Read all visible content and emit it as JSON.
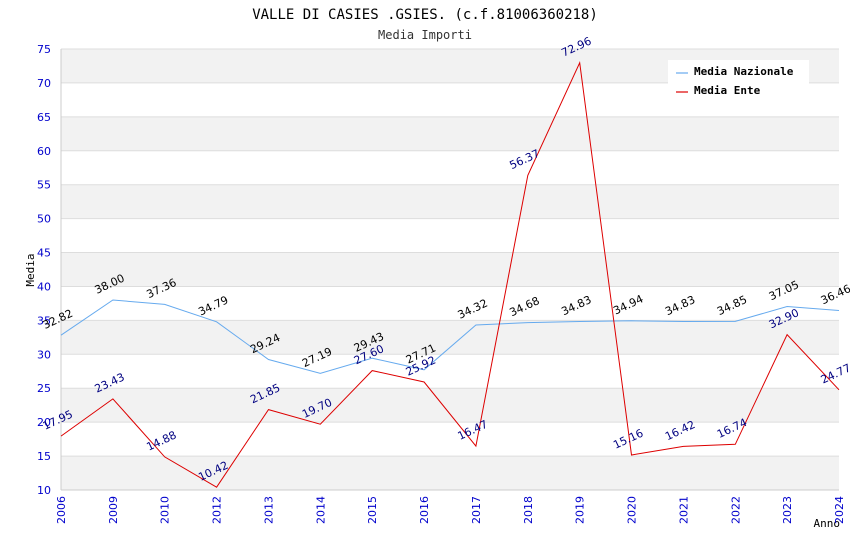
{
  "chart_data": {
    "type": "line",
    "title": "VALLE DI CASIES .GSIES. (c.f.81006360218)",
    "subtitle": "Media Importi",
    "xlabel": "Anno",
    "ylabel": "Media",
    "ylim": [
      10,
      75
    ],
    "yticks": [
      10,
      15,
      20,
      25,
      30,
      35,
      40,
      45,
      50,
      55,
      60,
      65,
      70,
      75
    ],
    "categories": [
      "2006",
      "2009",
      "2010",
      "2012",
      "2013",
      "2014",
      "2015",
      "2016",
      "2017",
      "2018",
      "2019",
      "2020",
      "2021",
      "2022",
      "2023",
      "2024"
    ],
    "series": [
      {
        "name": "Media Nazionale",
        "color": "#66aaee",
        "values": [
          32.82,
          38.0,
          37.36,
          34.79,
          29.24,
          27.19,
          29.43,
          27.71,
          34.32,
          34.68,
          34.83,
          34.94,
          34.83,
          34.85,
          37.05,
          36.46
        ],
        "labels": [
          "32.82",
          "38.00",
          "37.36",
          "34.79",
          "29.24",
          "27.19",
          "29.43",
          "27.71",
          "34.32",
          "34.68",
          "34.83",
          "34.94",
          "34.83",
          "34.85",
          "37.05",
          "36.46"
        ]
      },
      {
        "name": "Media Ente",
        "color": "#dd0000",
        "values": [
          17.95,
          23.43,
          14.88,
          10.42,
          21.85,
          19.7,
          27.6,
          25.92,
          16.47,
          56.37,
          72.96,
          15.16,
          16.42,
          16.74,
          32.9,
          24.77
        ],
        "labels": [
          "17.95",
          "23.43",
          "14.88",
          "10.42",
          "21.85",
          "19.70",
          "27.60",
          "25.92",
          "16.47",
          "56.37",
          "72.96",
          "15.16",
          "16.42",
          "16.74",
          "32.90",
          "24.77"
        ]
      }
    ],
    "legend_position": "top-right",
    "grid": true
  }
}
